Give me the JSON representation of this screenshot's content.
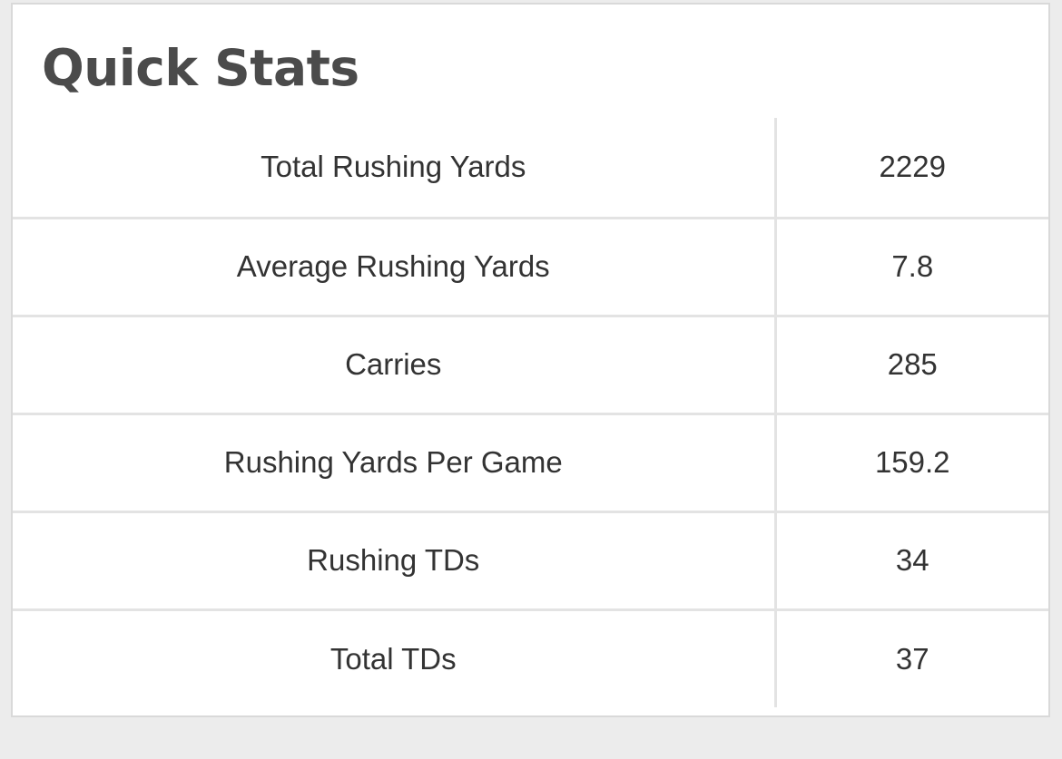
{
  "widget": {
    "title": "Quick Stats",
    "rows": [
      {
        "label": "Total Rushing Yards",
        "value": "2229"
      },
      {
        "label": "Average Rushing Yards",
        "value": "7.8"
      },
      {
        "label": "Carries",
        "value": "285"
      },
      {
        "label": "Rushing Yards Per Game",
        "value": "159.2"
      },
      {
        "label": "Rushing TDs",
        "value": "34"
      },
      {
        "label": "Total TDs",
        "value": "37"
      }
    ]
  },
  "colors": {
    "page_background": "#ececec",
    "card_background": "#ffffff",
    "title_text": "#4b4b4b",
    "cell_text": "#333333",
    "border": "#e3e3e3"
  }
}
